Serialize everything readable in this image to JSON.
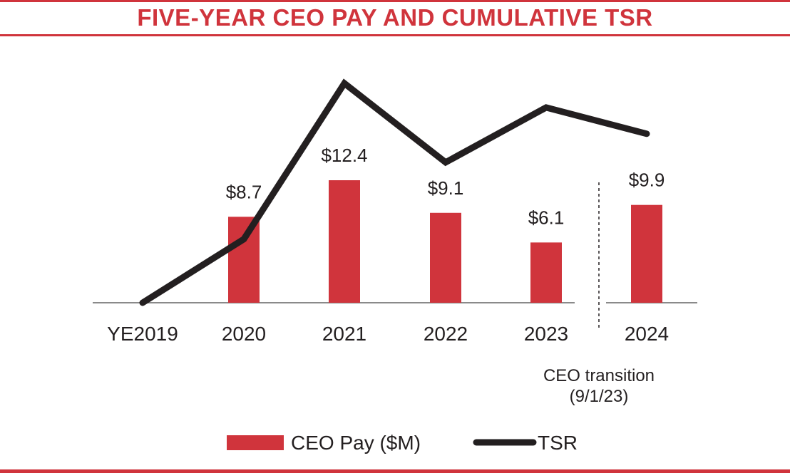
{
  "chart_data": {
    "type": "bar",
    "title": "FIVE-YEAR CEO PAY AND CUMULATIVE TSR",
    "categories": [
      "YE2019",
      "2020",
      "2021",
      "2022",
      "2023",
      "2024"
    ],
    "series": [
      {
        "name": "CEO Pay ($M)",
        "type": "bar",
        "values": [
          null,
          8.7,
          12.4,
          9.1,
          6.1,
          9.9
        ],
        "labels": [
          "",
          "$8.7",
          "$12.4",
          "$9.1",
          "$6.1",
          "$9.9"
        ],
        "color": "#d0343c"
      },
      {
        "name": "TSR",
        "type": "line",
        "values": [
          0,
          29,
          100,
          64,
          89,
          77
        ],
        "color": "#231f20"
      }
    ],
    "ylim": [
      0,
      100
    ],
    "annotation": {
      "lines": [
        "CEO transition",
        "(9/1/23)"
      ]
    },
    "legend": {
      "position": "bottom"
    },
    "grid": false,
    "baseline_color": "#8a8a8a"
  }
}
